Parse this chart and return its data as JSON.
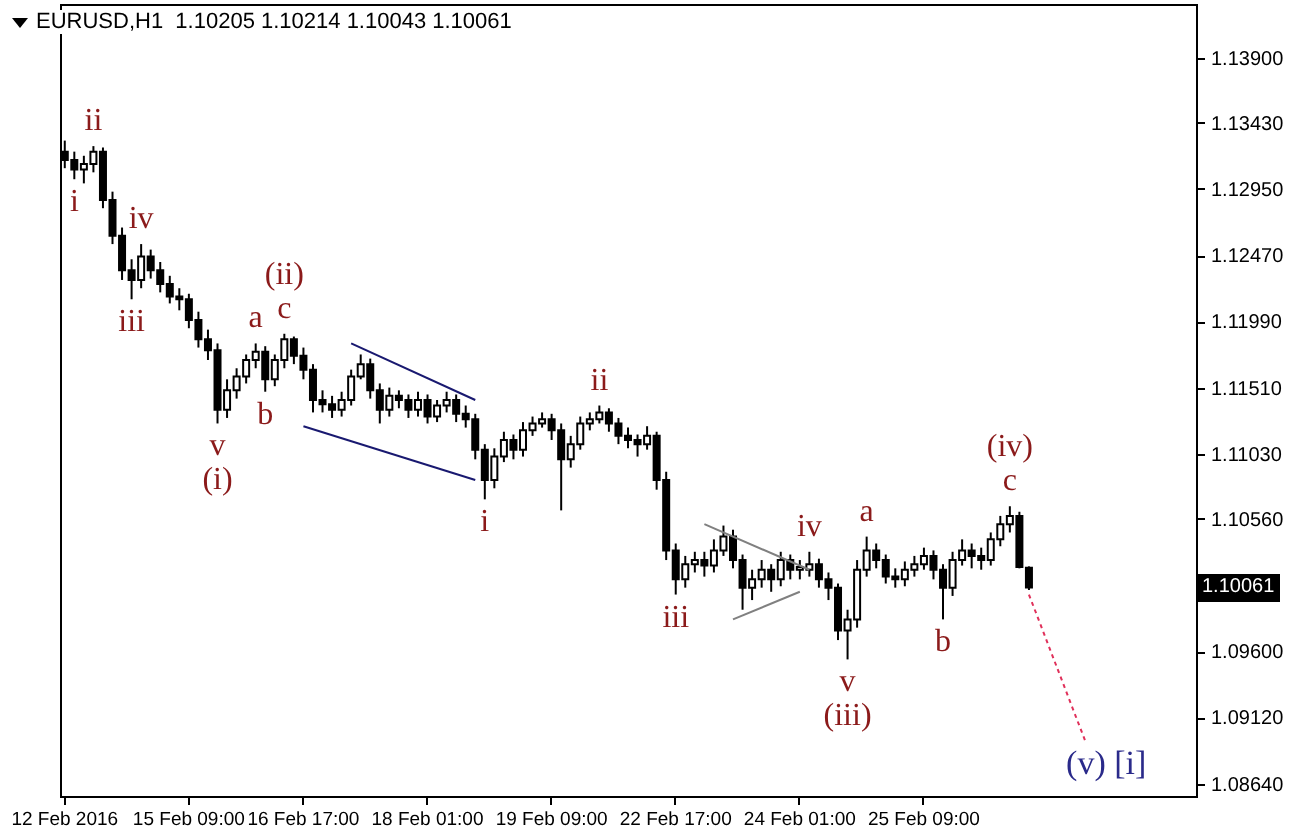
{
  "chart_data": {
    "type": "candlestick",
    "title": "EURUSD,H1  1.10205 1.10214 1.10043 1.10061",
    "categories": [
      "12 Feb 2016",
      null,
      null,
      null,
      null,
      null,
      null,
      null,
      null,
      null,
      null,
      null,
      null,
      "15 Feb 09:00",
      null,
      null,
      null,
      null,
      null,
      null,
      null,
      null,
      null,
      null,
      null,
      "16 Feb 17:00",
      null,
      null,
      null,
      null,
      null,
      null,
      null,
      null,
      null,
      null,
      null,
      null,
      "18 Feb 01:00",
      null,
      null,
      null,
      null,
      null,
      null,
      null,
      null,
      null,
      null,
      null,
      null,
      "19 Feb 09:00",
      null,
      null,
      null,
      null,
      null,
      null,
      null,
      null,
      null,
      null,
      null,
      null,
      "22 Feb 17:00",
      null,
      null,
      null,
      null,
      null,
      null,
      null,
      null,
      null,
      null,
      null,
      null,
      "24 Feb 01:00",
      null,
      null,
      null,
      null,
      null,
      null,
      null,
      null,
      null,
      null,
      null,
      null,
      "25 Feb 09:00",
      null,
      null,
      null,
      null,
      null,
      null,
      null,
      null,
      null,
      null,
      null,
      null,
      null,
      null,
      null,
      null,
      null,
      null,
      null,
      null,
      null,
      null,
      null,
      null,
      null,
      null,
      null,
      null
    ],
    "ohlc": [
      [
        1.1322,
        1.133,
        1.131,
        1.1316
      ],
      [
        1.1316,
        1.1322,
        1.1302,
        1.1309
      ],
      [
        1.1309,
        1.1319,
        1.1299,
        1.1313
      ],
      [
        1.1313,
        1.1326,
        1.1307,
        1.1322
      ],
      [
        1.1322,
        1.1325,
        1.1281,
        1.1287
      ],
      [
        1.1287,
        1.1293,
        1.1255,
        1.1261
      ],
      [
        1.1261,
        1.1267,
        1.1229,
        1.1236
      ],
      [
        1.1236,
        1.1244,
        1.1215,
        1.1229
      ],
      [
        1.1229,
        1.1255,
        1.1223,
        1.1246
      ],
      [
        1.1246,
        1.1251,
        1.123,
        1.1236
      ],
      [
        1.1236,
        1.1242,
        1.122,
        1.1226
      ],
      [
        1.1226,
        1.1232,
        1.1212,
        1.1217
      ],
      [
        1.1217,
        1.1223,
        1.1207,
        1.1215
      ],
      [
        1.1215,
        1.1219,
        1.1194,
        1.12
      ],
      [
        1.12,
        1.1206,
        1.118,
        1.1186
      ],
      [
        1.1186,
        1.1193,
        1.1171,
        1.1178
      ],
      [
        1.1178,
        1.1183,
        1.1125,
        1.1135
      ],
      [
        1.1135,
        1.1157,
        1.1129,
        1.1149
      ],
      [
        1.1149,
        1.1165,
        1.1143,
        1.1159
      ],
      [
        1.1159,
        1.1175,
        1.1154,
        1.1171
      ],
      [
        1.1171,
        1.1183,
        1.1165,
        1.1177
      ],
      [
        1.1177,
        1.1181,
        1.1148,
        1.1157
      ],
      [
        1.1157,
        1.1175,
        1.1152,
        1.1171
      ],
      [
        1.1171,
        1.119,
        1.1165,
        1.1186
      ],
      [
        1.1186,
        1.1188,
        1.1168,
        1.1174
      ],
      [
        1.1174,
        1.118,
        1.1157,
        1.1164
      ],
      [
        1.1164,
        1.1168,
        1.1133,
        1.1142
      ],
      [
        1.1142,
        1.1149,
        1.1133,
        1.1139
      ],
      [
        1.1139,
        1.1145,
        1.1129,
        1.1135
      ],
      [
        1.1135,
        1.1148,
        1.113,
        1.1142
      ],
      [
        1.1142,
        1.1164,
        1.1138,
        1.1159
      ],
      [
        1.1159,
        1.1175,
        1.1157,
        1.1168
      ],
      [
        1.1168,
        1.1172,
        1.1143,
        1.1149
      ],
      [
        1.1149,
        1.1154,
        1.1125,
        1.1135
      ],
      [
        1.1135,
        1.1151,
        1.113,
        1.1145
      ],
      [
        1.1145,
        1.1149,
        1.1136,
        1.1142
      ],
      [
        1.1142,
        1.1146,
        1.1129,
        1.1135
      ],
      [
        1.1135,
        1.1148,
        1.113,
        1.1142
      ],
      [
        1.1142,
        1.1146,
        1.1125,
        1.113
      ],
      [
        1.113,
        1.1142,
        1.1126,
        1.1138
      ],
      [
        1.1138,
        1.1148,
        1.1133,
        1.1142
      ],
      [
        1.1142,
        1.1146,
        1.1126,
        1.1132
      ],
      [
        1.1132,
        1.1138,
        1.1122,
        1.1128
      ],
      [
        1.1128,
        1.1132,
        1.1099,
        1.1106
      ],
      [
        1.1106,
        1.111,
        1.107,
        1.1084
      ],
      [
        1.1084,
        1.1107,
        1.1078,
        1.1101
      ],
      [
        1.1101,
        1.1119,
        1.1097,
        1.1113
      ],
      [
        1.1113,
        1.1117,
        1.1099,
        1.1106
      ],
      [
        1.1106,
        1.1126,
        1.1101,
        1.112
      ],
      [
        1.112,
        1.113,
        1.1116,
        1.1125
      ],
      [
        1.1125,
        1.1133,
        1.1122,
        1.1128
      ],
      [
        1.1128,
        1.1132,
        1.1113,
        1.112
      ],
      [
        1.112,
        1.1125,
        1.1062,
        1.1099
      ],
      [
        1.1099,
        1.1116,
        1.1093,
        1.111
      ],
      [
        1.111,
        1.113,
        1.1106,
        1.1125
      ],
      [
        1.1125,
        1.1133,
        1.112,
        1.1128
      ],
      [
        1.1128,
        1.1138,
        1.1125,
        1.1133
      ],
      [
        1.1133,
        1.1136,
        1.1119,
        1.1125
      ],
      [
        1.1125,
        1.1129,
        1.111,
        1.1116
      ],
      [
        1.1116,
        1.1122,
        1.1107,
        1.1113
      ],
      [
        1.1113,
        1.1117,
        1.1101,
        1.111
      ],
      [
        1.111,
        1.1123,
        1.1106,
        1.1116
      ],
      [
        1.1116,
        1.1119,
        1.1077,
        1.1084
      ],
      [
        1.1084,
        1.109,
        1.1026,
        1.1033
      ],
      [
        1.1033,
        1.1038,
        1.1001,
        1.1012
      ],
      [
        1.1012,
        1.1029,
        1.1006,
        1.1023
      ],
      [
        1.1023,
        1.1032,
        1.1017,
        1.1026
      ],
      [
        1.1026,
        1.1032,
        1.1014,
        1.1022
      ],
      [
        1.1022,
        1.1041,
        1.1017,
        1.1033
      ],
      [
        1.1033,
        1.1051,
        1.1029,
        1.1043
      ],
      [
        1.1043,
        1.1048,
        1.102,
        1.1026
      ],
      [
        1.1026,
        1.103,
        1.099,
        1.1006
      ],
      [
        1.1006,
        1.1019,
        1.0997,
        1.1012
      ],
      [
        1.1012,
        1.1026,
        1.1006,
        1.1019
      ],
      [
        1.1019,
        1.1023,
        1.1003,
        1.1012
      ],
      [
        1.1012,
        1.1032,
        1.1007,
        1.1026
      ],
      [
        1.1026,
        1.103,
        1.1012,
        1.1019
      ],
      [
        1.1019,
        1.1026,
        1.1012,
        1.1021
      ],
      [
        1.1019,
        1.1032,
        1.1014,
        1.1023
      ],
      [
        1.1023,
        1.1027,
        1.1006,
        1.1012
      ],
      [
        1.1012,
        1.1017,
        1.0997,
        1.1006
      ],
      [
        1.1006,
        1.1009,
        1.0968,
        1.0975
      ],
      [
        1.0975,
        1.099,
        1.0954,
        1.0983
      ],
      [
        1.0983,
        1.1026,
        1.0977,
        1.1019
      ],
      [
        1.1019,
        1.1043,
        1.1014,
        1.1033
      ],
      [
        1.1033,
        1.1038,
        1.102,
        1.1026
      ],
      [
        1.1026,
        1.103,
        1.1009,
        1.1014
      ],
      [
        1.1014,
        1.102,
        1.1006,
        1.1012
      ],
      [
        1.1012,
        1.1025,
        1.1007,
        1.1019
      ],
      [
        1.1019,
        1.1029,
        1.1014,
        1.1023
      ],
      [
        1.1023,
        1.1035,
        1.1019,
        1.1029
      ],
      [
        1.1029,
        1.1033,
        1.1012,
        1.1019
      ],
      [
        1.1019,
        1.1023,
        1.0983,
        1.1006
      ],
      [
        1.1006,
        1.1032,
        1.1,
        1.1026
      ],
      [
        1.1026,
        1.1041,
        1.1022,
        1.1033
      ],
      [
        1.1033,
        1.1038,
        1.102,
        1.1029
      ],
      [
        1.1029,
        1.1035,
        1.1019,
        1.1026
      ],
      [
        1.1026,
        1.1046,
        1.1022,
        1.1041
      ],
      [
        1.1041,
        1.1058,
        1.1036,
        1.1052
      ],
      [
        1.1052,
        1.1065,
        1.1046,
        1.1058
      ],
      [
        1.1058,
        1.1061,
        1.102,
        1.1021
      ],
      [
        1.10205,
        1.10214,
        1.10043,
        1.10061
      ],
      null,
      null,
      null,
      null,
      null,
      null,
      null,
      null,
      null,
      null,
      null,
      null,
      null,
      null,
      null,
      null,
      null
    ],
    "value_labels": [
      null,
      "i",
      null,
      "ii",
      null,
      null,
      null,
      "iii",
      "iv",
      null,
      null,
      null,
      null,
      null,
      null,
      null,
      "v\n(i)",
      null,
      null,
      null,
      "a",
      "b",
      null,
      "(ii)\nc",
      null,
      null,
      null,
      null,
      null,
      null,
      null,
      null,
      null,
      null,
      null,
      null,
      null,
      null,
      null,
      null,
      null,
      null,
      null,
      null,
      "i",
      null,
      null,
      null,
      null,
      null,
      null,
      null,
      null,
      null,
      null,
      null,
      "ii",
      null,
      null,
      null,
      null,
      null,
      null,
      null,
      "iii",
      null,
      null,
      null,
      null,
      null,
      null,
      null,
      null,
      null,
      null,
      null,
      null,
      null,
      "iv",
      null,
      null,
      null,
      "v\n(iii)",
      null,
      "a",
      null,
      null,
      null,
      null,
      null,
      null,
      null,
      "b",
      null,
      null,
      null,
      null,
      null,
      null,
      "(iv)\nc",
      null,
      null,
      null,
      null,
      null,
      null,
      null,
      null,
      null,
      null,
      null,
      null,
      null,
      null,
      null,
      null,
      null,
      null,
      null
    ],
    "series": [
      {
        "type": "line",
        "color": "#191970",
        "line_style": "solid",
        "values": [
          null,
          null,
          null,
          null,
          null,
          null,
          null,
          null,
          null,
          null,
          null,
          null,
          null,
          null,
          null,
          null,
          null,
          null,
          null,
          null,
          null,
          null,
          null,
          null,
          null,
          null,
          null,
          null,
          null,
          null,
          1.1183,
          null,
          null,
          null,
          null,
          null,
          null,
          null,
          null,
          null,
          null,
          null,
          null,
          1.1142,
          null,
          null,
          null,
          null,
          null,
          null,
          null,
          null,
          null,
          null,
          null,
          null,
          null,
          null,
          null,
          null,
          null,
          null,
          null,
          null,
          null,
          null,
          null,
          null,
          null,
          null,
          null,
          null,
          null,
          null,
          null,
          null,
          null,
          null,
          null,
          null,
          null,
          null,
          null,
          null,
          null,
          null,
          null,
          null,
          null,
          null,
          null,
          null,
          null,
          null,
          null,
          null,
          null,
          null,
          null,
          null,
          null,
          null,
          null,
          null,
          null,
          null,
          null,
          null,
          null,
          null,
          null,
          null,
          null,
          null,
          null,
          null,
          null,
          null,
          null
        ]
      },
      {
        "type": "line",
        "color": "#191970",
        "line_style": "solid",
        "values": [
          null,
          null,
          null,
          null,
          null,
          null,
          null,
          null,
          null,
          null,
          null,
          null,
          null,
          null,
          null,
          null,
          null,
          null,
          null,
          null,
          null,
          null,
          null,
          null,
          null,
          1.1123,
          null,
          null,
          null,
          null,
          null,
          null,
          null,
          null,
          null,
          null,
          null,
          null,
          null,
          null,
          null,
          null,
          null,
          1.1084,
          null,
          null,
          null,
          null,
          null,
          null,
          null,
          null,
          null,
          null,
          null,
          null,
          null,
          null,
          null,
          null,
          null,
          null,
          null,
          null,
          null,
          null,
          null,
          null,
          null,
          null,
          null,
          null,
          null,
          null,
          null,
          null,
          null,
          null,
          null,
          null,
          null,
          null,
          null,
          null,
          null,
          null,
          null,
          null,
          null,
          null,
          null,
          null,
          null,
          null,
          null,
          null,
          null,
          null,
          null,
          null,
          null,
          null,
          null,
          null,
          null,
          null,
          null,
          null,
          null,
          null,
          null,
          null,
          null,
          null,
          null,
          null,
          null,
          null,
          null
        ]
      },
      {
        "type": "line",
        "color": "#808080",
        "line_style": "solid",
        "values": [
          null,
          null,
          null,
          null,
          null,
          null,
          null,
          null,
          null,
          null,
          null,
          null,
          null,
          null,
          null,
          null,
          null,
          null,
          null,
          null,
          null,
          null,
          null,
          null,
          null,
          null,
          null,
          null,
          null,
          null,
          null,
          null,
          null,
          null,
          null,
          null,
          null,
          null,
          null,
          null,
          null,
          null,
          null,
          null,
          null,
          null,
          null,
          null,
          null,
          null,
          null,
          null,
          null,
          null,
          null,
          null,
          null,
          null,
          null,
          null,
          null,
          null,
          null,
          null,
          null,
          null,
          null,
          1.1052,
          null,
          null,
          null,
          null,
          null,
          null,
          null,
          null,
          null,
          null,
          1.1019,
          null,
          null,
          null,
          null,
          null,
          null,
          null,
          null,
          null,
          null,
          null,
          null,
          null,
          null,
          null,
          null,
          null,
          null,
          null,
          null,
          null,
          null,
          null,
          null,
          null,
          null,
          null,
          null,
          null,
          null,
          null,
          null,
          null,
          null,
          null,
          null,
          null,
          null,
          null,
          null
        ]
      },
      {
        "type": "line",
        "color": "#808080",
        "line_style": "solid",
        "values": [
          null,
          null,
          null,
          null,
          null,
          null,
          null,
          null,
          null,
          null,
          null,
          null,
          null,
          null,
          null,
          null,
          null,
          null,
          null,
          null,
          null,
          null,
          null,
          null,
          null,
          null,
          null,
          null,
          null,
          null,
          null,
          null,
          null,
          null,
          null,
          null,
          null,
          null,
          null,
          null,
          null,
          null,
          null,
          null,
          null,
          null,
          null,
          null,
          null,
          null,
          null,
          null,
          null,
          null,
          null,
          null,
          null,
          null,
          null,
          null,
          null,
          null,
          null,
          null,
          null,
          null,
          null,
          null,
          null,
          null,
          1.0983,
          null,
          null,
          null,
          null,
          null,
          null,
          1.1003,
          null,
          null,
          null,
          null,
          null,
          null,
          null,
          null,
          null,
          null,
          null,
          null,
          null,
          null,
          null,
          null,
          null,
          null,
          null,
          null,
          null,
          null,
          null,
          null,
          null,
          null,
          null,
          null,
          null,
          null,
          null,
          null,
          null,
          null,
          null,
          null,
          null,
          null,
          null,
          null,
          null
        ]
      },
      {
        "type": "line",
        "name": "(v) [i]",
        "color": "#e0305a",
        "line_style": "dotted",
        "values": [
          null,
          null,
          null,
          null,
          null,
          null,
          null,
          null,
          null,
          null,
          null,
          null,
          null,
          null,
          null,
          null,
          null,
          null,
          null,
          null,
          null,
          null,
          null,
          null,
          null,
          null,
          null,
          null,
          null,
          null,
          null,
          null,
          null,
          null,
          null,
          null,
          null,
          null,
          null,
          null,
          null,
          null,
          null,
          null,
          null,
          null,
          null,
          null,
          null,
          null,
          null,
          null,
          null,
          null,
          null,
          null,
          null,
          null,
          null,
          null,
          null,
          null,
          null,
          null,
          null,
          null,
          null,
          null,
          null,
          null,
          null,
          null,
          null,
          null,
          null,
          null,
          null,
          null,
          null,
          null,
          null,
          null,
          null,
          null,
          null,
          null,
          null,
          null,
          null,
          null,
          null,
          null,
          null,
          null,
          null,
          null,
          null,
          null,
          null,
          null,
          null,
          1.1001,
          null,
          null,
          null,
          null,
          null,
          1.0893,
          null,
          null,
          null,
          null,
          null,
          null,
          null,
          null,
          null,
          null,
          null
        ]
      }
    ],
    "annotations": [
      {
        "text": "1.10061",
        "y": 1.10061
      }
    ],
    "ylim": [
      1.0855,
      1.1429
    ],
    "yticks": [
      {
        "value": 1.139,
        "label": "1.13900"
      },
      {
        "value": 1.1343,
        "label": "1.13430"
      },
      {
        "value": 1.1295,
        "label": "1.12950"
      },
      {
        "value": 1.1247,
        "label": "1.12470"
      },
      {
        "value": 1.1199,
        "label": "1.11990"
      },
      {
        "value": 1.1151,
        "label": "1.11510"
      },
      {
        "value": 1.1103,
        "label": "1.11030"
      },
      {
        "value": 1.1056,
        "label": "1.10560"
      },
      {
        "value": 1.096,
        "label": "1.09600"
      },
      {
        "value": 1.0912,
        "label": "1.09120"
      },
      {
        "value": 1.0864,
        "label": "1.08640"
      }
    ],
    "grid": false
  }
}
